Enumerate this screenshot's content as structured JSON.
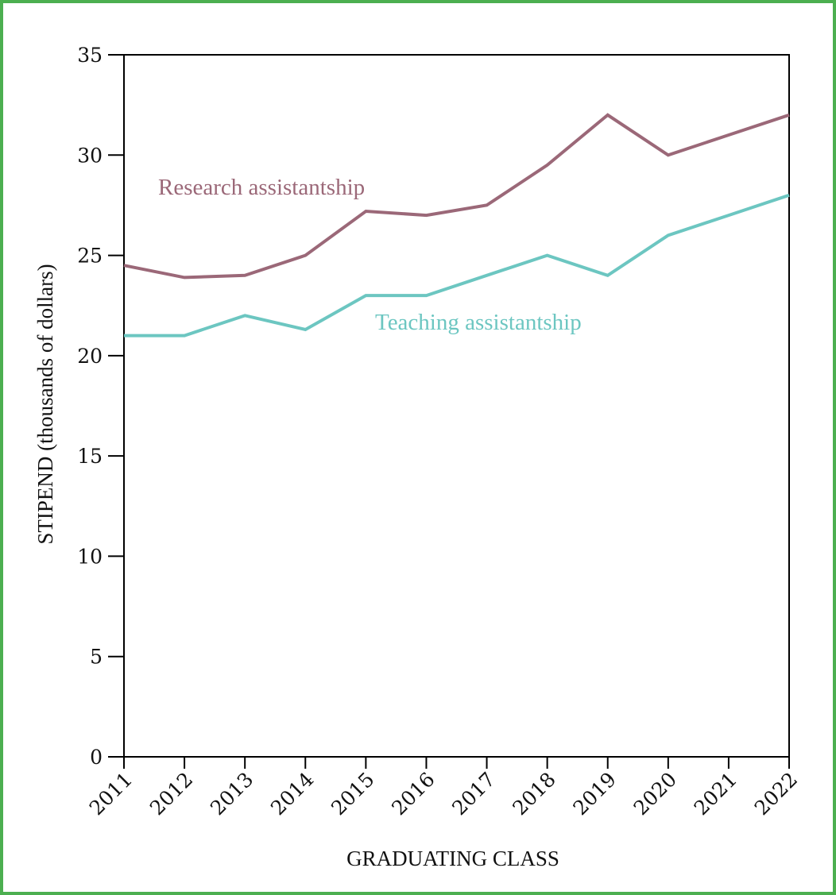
{
  "chart_data": {
    "type": "line",
    "title": "",
    "xlabel": "GRADUATING CLASS",
    "ylabel": "STIPEND (thousands of dollars)",
    "x": [
      "2011",
      "2012",
      "2013",
      "2014",
      "2015",
      "2016",
      "2017",
      "2018",
      "2019",
      "2020",
      "2021",
      "2022"
    ],
    "ylim": [
      0,
      35
    ],
    "yticks": [
      "0",
      "5",
      "10",
      "15",
      "20",
      "25",
      "30",
      "35"
    ],
    "grid": false,
    "legend": "inline labels",
    "series": [
      {
        "name": "Research assistantship",
        "color": "#9b6878",
        "values": [
          24.5,
          23.9,
          24.0,
          25.0,
          27.2,
          27.0,
          27.5,
          29.5,
          32.0,
          30.0,
          31.0,
          32.0
        ]
      },
      {
        "name": "Teaching assistantship",
        "color": "#6cc6c1",
        "values": [
          21.0,
          21.0,
          22.0,
          21.3,
          23.0,
          23.0,
          24.0,
          25.0,
          24.0,
          26.0,
          27.0,
          28.0
        ]
      }
    ]
  },
  "frame_color": "#4caf50"
}
